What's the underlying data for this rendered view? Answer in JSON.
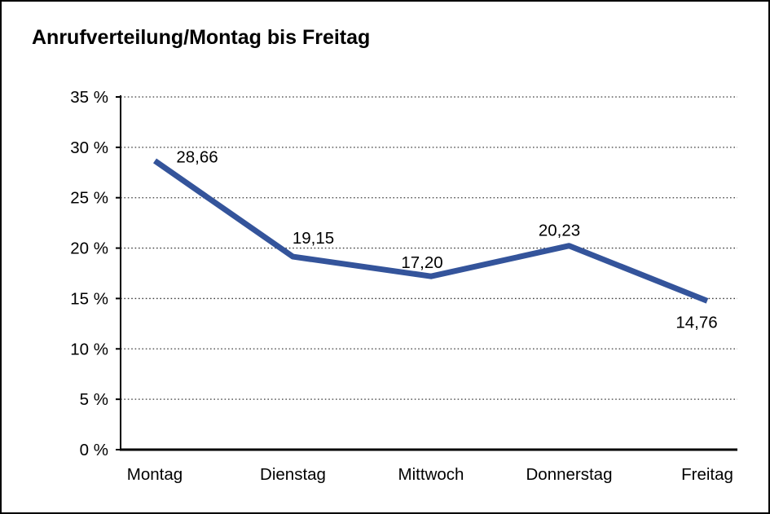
{
  "window": {
    "background": "#FFFFFF",
    "border_color": "#000000"
  },
  "colors": {
    "line": "#34549B",
    "axis": "#000000",
    "grid_dots": "#3C3C3C",
    "text": "#000000"
  },
  "chart_data": {
    "type": "line",
    "title": "Anrufverteilung/Montag bis Freitag",
    "categories": [
      "Montag",
      "Dienstag",
      "Mittwoch",
      "Donnerstag",
      "Freitag"
    ],
    "series": [
      {
        "name": "Anrufverteilung",
        "values": [
          28.66,
          19.15,
          17.2,
          20.23,
          14.76
        ],
        "value_labels": [
          "28,66",
          "19,15",
          "17,20",
          "20,23",
          "14,76"
        ],
        "color": "#34549B"
      }
    ],
    "xlabel": "",
    "ylabel": "",
    "ylim": [
      0,
      35
    ],
    "ytick_step": 5,
    "ytick_labels": [
      "0 %",
      "5 %",
      "10 %",
      "15 %",
      "20 %",
      "25 %",
      "30 %",
      "35 %"
    ],
    "grid": "horizontal-dotted",
    "legend": "none"
  }
}
